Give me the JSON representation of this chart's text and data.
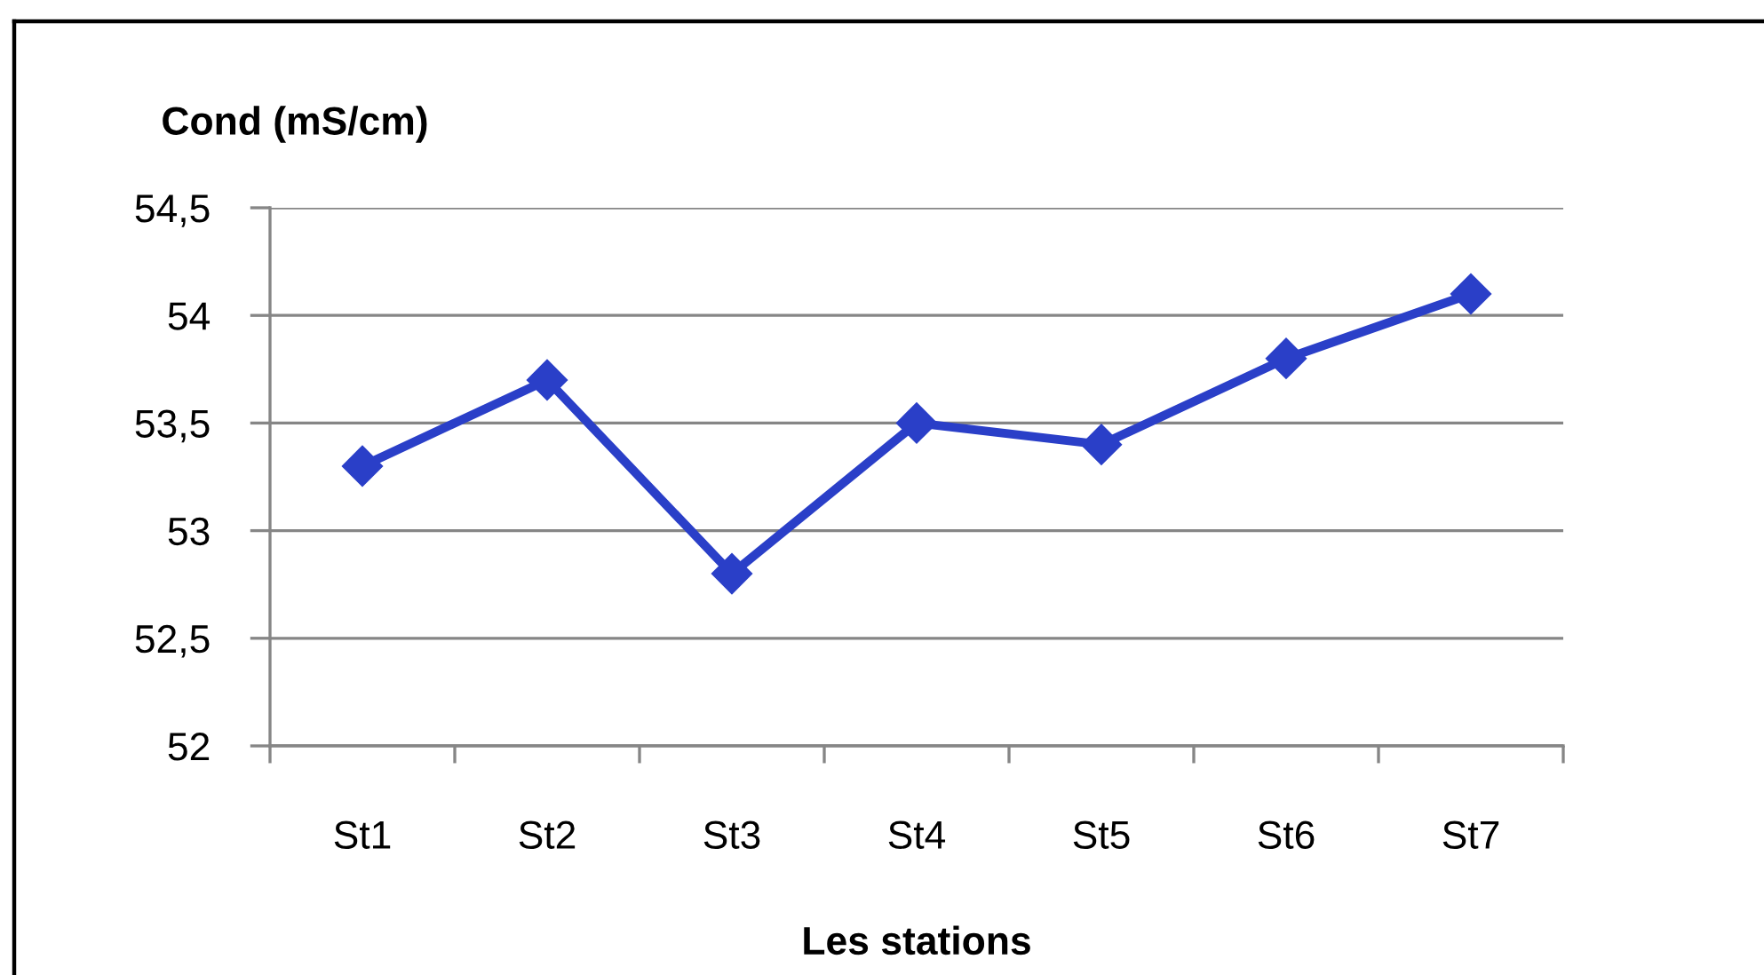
{
  "chart_data": {
    "type": "line",
    "xlabel": "Les stations",
    "ylabel": "Cond (mS/cm)",
    "categories": [
      "St1",
      "St2",
      "St3",
      "St4",
      "St5",
      "St6",
      "St7"
    ],
    "series": [
      {
        "color": "#2a3fc8",
        "values": [
          53.3,
          53.7,
          52.8,
          53.5,
          53.4,
          53.8,
          54.1
        ]
      }
    ],
    "ylim": [
      52,
      54.5
    ],
    "yticks": [
      52,
      {
        "value": 52.5,
        "label": "52,5"
      },
      53,
      {
        "value": 53.5,
        "label": "53,5"
      },
      54,
      {
        "value": 54.5,
        "label": "54,5"
      }
    ],
    "grid": "y",
    "marker": "diamond",
    "line_style": "solid"
  }
}
